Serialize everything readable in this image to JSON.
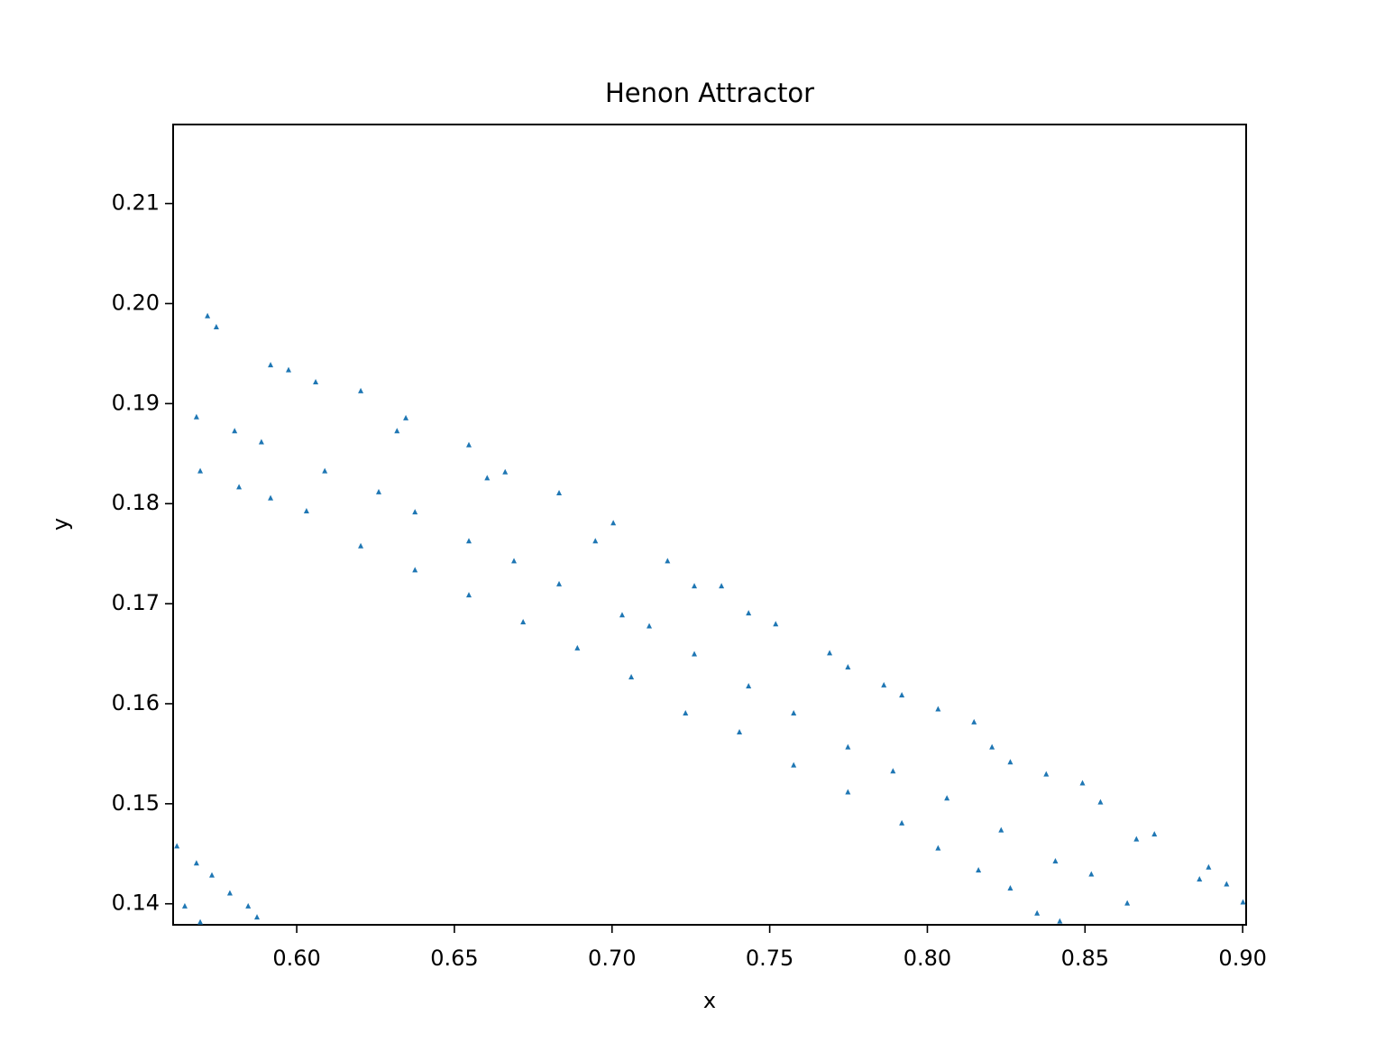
{
  "chart_data": {
    "type": "scatter",
    "title": "Henon Attractor",
    "x_label": "x",
    "y_label": "y",
    "color": "#1f77b4",
    "marker": "triangle",
    "xlim": [
      0.5608,
      0.9011
    ],
    "ylim": [
      0.1379,
      0.2179
    ],
    "xticks": [
      {
        "value": 0.6,
        "label": "0.60"
      },
      0.65,
      {
        "value": 0.7,
        "label": "0.70"
      },
      0.75,
      {
        "value": 0.8,
        "label": "0.80"
      },
      0.85,
      {
        "value": 0.9,
        "label": "0.90"
      }
    ],
    "yticks": [
      0.14,
      0.15,
      0.16,
      0.17,
      0.18,
      0.19,
      {
        "value": 0.2,
        "label": "0.20"
      },
      0.21
    ],
    "x": [
      0.5745,
      0.5917,
      0.606,
      0.6203,
      0.6346,
      0.6546,
      0.6661,
      0.6832,
      0.7004,
      0.7176,
      0.7347,
      0.7519,
      0.769,
      0.7862,
      0.8034,
      0.8205,
      0.8377,
      0.8549,
      0.872,
      0.8892,
      0.9001,
      0.5717,
      0.5974,
      0.6318,
      0.6604,
      0.6947,
      0.7261,
      0.7433,
      0.7748,
      0.7919,
      0.8148,
      0.8263,
      0.8492,
      0.8663,
      0.8863,
      0.8949,
      0.5682,
      0.5803,
      0.5888,
      0.6089,
      0.626,
      0.6375,
      0.6546,
      0.6689,
      0.6832,
      0.7032,
      0.7118,
      0.7261,
      0.7433,
      0.7576,
      0.7748,
      0.7891,
      0.8062,
      0.8234,
      0.8406,
      0.852,
      0.8634,
      0.5694,
      0.5817,
      0.5917,
      0.6031,
      0.6203,
      0.6375,
      0.6546,
      0.6718,
      0.689,
      0.7061,
      0.7233,
      0.7404,
      0.7576,
      0.7748,
      0.7919,
      0.8034,
      0.8162,
      0.8263,
      0.8348,
      0.842,
      0.562,
      0.5645,
      0.5682,
      0.5731,
      0.5788,
      0.5846,
      0.5874,
      0.5694
    ],
    "y": [
      0.1977,
      0.1939,
      0.1922,
      0.1913,
      0.1886,
      0.1859,
      0.1832,
      0.1811,
      0.1781,
      0.1743,
      0.1718,
      0.168,
      0.1651,
      0.1619,
      0.1595,
      0.1557,
      0.153,
      0.1502,
      0.147,
      0.1437,
      0.1402,
      0.1988,
      0.1934,
      0.1873,
      0.1826,
      0.1763,
      0.1718,
      0.1691,
      0.1637,
      0.1609,
      0.1582,
      0.1542,
      0.1521,
      0.1465,
      0.1425,
      0.142,
      0.1887,
      0.1873,
      0.1862,
      0.1833,
      0.1812,
      0.1792,
      0.1763,
      0.1743,
      0.172,
      0.1689,
      0.1678,
      0.165,
      0.1618,
      0.1591,
      0.1557,
      0.1533,
      0.1506,
      0.1474,
      0.1443,
      0.143,
      0.1401,
      0.1833,
      0.1817,
      0.1806,
      0.1793,
      0.1758,
      0.1734,
      0.1709,
      0.1682,
      0.1656,
      0.1627,
      0.1591,
      0.1572,
      0.1539,
      0.1512,
      0.1481,
      0.1456,
      0.1434,
      0.1416,
      0.1391,
      0.1383,
      0.1458,
      0.1398,
      0.1441,
      0.1429,
      0.1411,
      0.1398,
      0.1387,
      0.1382
    ]
  }
}
